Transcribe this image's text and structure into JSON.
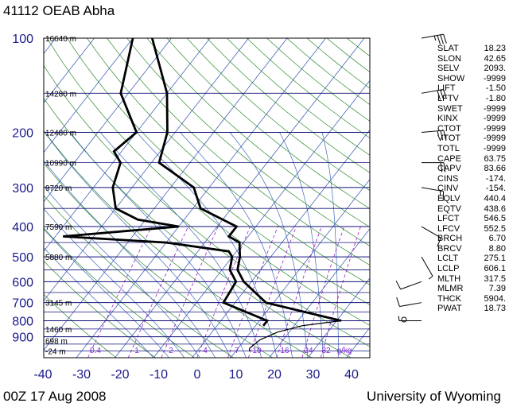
{
  "header": {
    "title": "41112 OEAB Abha"
  },
  "footer": {
    "left": "00Z 17 Aug 2008",
    "right": "University of Wyoming"
  },
  "chart_data": {
    "type": "line",
    "title": "41112 OEAB Abha",
    "x_axis": {
      "min": -40,
      "max": 45,
      "ticks": [
        "-40",
        "-30",
        "-20",
        "-10",
        "0",
        "10",
        "20",
        "30",
        "40"
      ]
    },
    "y_axis": {
      "log_scale": true,
      "min": 100,
      "max": 1050,
      "ticks": [
        "100",
        "200",
        "300",
        "400",
        "500",
        "600",
        "700",
        "800",
        "900"
      ]
    },
    "height_labels": [
      {
        "p": 100,
        "label": "16640 m"
      },
      {
        "p": 150,
        "label": "14280 m"
      },
      {
        "p": 200,
        "label": "12480 m"
      },
      {
        "p": 250,
        "label": "10990 m"
      },
      {
        "p": 300,
        "label": "9720 m"
      },
      {
        "p": 400,
        "label": "7590 m"
      },
      {
        "p": 500,
        "label": "5880 m"
      },
      {
        "p": 700,
        "label": "3145 m"
      },
      {
        "p": 850,
        "label": "1460 m"
      },
      {
        "p": 925,
        "label": "698 m"
      },
      {
        "p": 1000,
        "label": "-24 m"
      }
    ],
    "mixing_ratio_labels": [
      "0.4",
      "1",
      "2",
      "4",
      "7",
      "10",
      "16",
      "24",
      "32",
      "g/kg"
    ],
    "series": [
      {
        "values": [
          [
            800,
            31.2
          ],
          [
            810,
            28
          ],
          [
            830,
            22
          ],
          [
            870,
            17
          ],
          [
            920,
            14
          ],
          [
            980,
            13
          ],
          [
            1000,
            13.5
          ]
        ]
      },
      {
        "values": [
          [
            100,
            -75
          ],
          [
            150,
            -60
          ],
          [
            200,
            -52
          ],
          [
            250,
            -48
          ],
          [
            300,
            -34
          ],
          [
            350,
            -28
          ],
          [
            400,
            -15
          ],
          [
            430,
            -15
          ],
          [
            450,
            -11
          ],
          [
            500,
            -8
          ],
          [
            550,
            -6
          ],
          [
            600,
            -2
          ],
          [
            700,
            8
          ],
          [
            800,
            31.2
          ]
        ]
      },
      {
        "values": [
          [
            100,
            -80
          ],
          [
            150,
            -72
          ],
          [
            200,
            -60
          ],
          [
            230,
            -62
          ],
          [
            250,
            -58
          ],
          [
            300,
            -55
          ],
          [
            350,
            -50
          ],
          [
            380,
            -42
          ],
          [
            400,
            -30
          ],
          [
            430,
            -58
          ],
          [
            450,
            -30
          ],
          [
            480,
            -12
          ],
          [
            500,
            -10
          ],
          [
            550,
            -8
          ],
          [
            600,
            -4
          ],
          [
            700,
            -3
          ],
          [
            800,
            12
          ],
          [
            830,
            12
          ]
        ]
      }
    ],
    "winds": [
      {
        "p": 100,
        "dir": 80,
        "spd": 35
      },
      {
        "p": 150,
        "dir": 80,
        "spd": 30
      },
      {
        "p": 200,
        "dir": 85,
        "spd": 25
      },
      {
        "p": 250,
        "dir": 90,
        "spd": 20
      },
      {
        "p": 300,
        "dir": 100,
        "spd": 15
      },
      {
        "p": 400,
        "dir": 120,
        "spd": 10
      },
      {
        "p": 500,
        "dir": 150,
        "spd": 5
      },
      {
        "p": 600,
        "dir": 250,
        "spd": 10
      },
      {
        "p": 700,
        "dir": 260,
        "spd": 12
      },
      {
        "p": 800,
        "dir": 270,
        "spd": 5
      }
    ]
  },
  "indices": [
    {
      "k": "SLAT",
      "v": "18.23"
    },
    {
      "k": "SLON",
      "v": "42.65"
    },
    {
      "k": "SELV",
      "v": "2093."
    },
    {
      "k": "SHOW",
      "v": "-9999"
    },
    {
      "k": "LIFT",
      "v": "-1.50"
    },
    {
      "k": "LFTV",
      "v": "-1.80"
    },
    {
      "k": "SWET",
      "v": "-9999"
    },
    {
      "k": "KINX",
      "v": "-9999"
    },
    {
      "k": "CTOT",
      "v": "-9999"
    },
    {
      "k": "VTOT",
      "v": "-9999"
    },
    {
      "k": "TOTL",
      "v": "-9999"
    },
    {
      "k": "CAPE",
      "v": "63.75"
    },
    {
      "k": "CAPV",
      "v": "83.66"
    },
    {
      "k": "CINS",
      "v": "-174."
    },
    {
      "k": "CINV",
      "v": "-154."
    },
    {
      "k": "EQLV",
      "v": "440.4"
    },
    {
      "k": "EQTV",
      "v": "438.6"
    },
    {
      "k": "LFCT",
      "v": "546.5"
    },
    {
      "k": "LFCV",
      "v": "552.5"
    },
    {
      "k": "BRCH",
      "v": "6.70"
    },
    {
      "k": "BRCV",
      "v": "8.80"
    },
    {
      "k": "LCLT",
      "v": "275.1"
    },
    {
      "k": "LCLP",
      "v": "606.1"
    },
    {
      "k": "MLTH",
      "v": "317.5"
    },
    {
      "k": "MLMR",
      "v": "7.39"
    },
    {
      "k": "THCK",
      "v": "5904."
    },
    {
      "k": "PWAT",
      "v": "18.73"
    }
  ]
}
